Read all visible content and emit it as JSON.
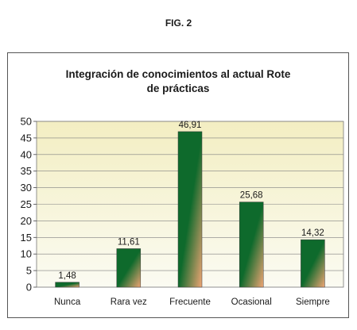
{
  "figure_label": "FIG. 2",
  "chart_data": {
    "type": "bar",
    "title": "Integración de conocimientos al actual Rote de prácticas",
    "title_lines": [
      "Integración de conocimientos al actual Rote",
      "de prácticas"
    ],
    "categories": [
      "Nunca",
      "Rara vez",
      "Frecuente",
      "Ocasional",
      "Siempre"
    ],
    "values": [
      1.48,
      11.61,
      46.91,
      25.68,
      14.32
    ],
    "value_labels": [
      "1,48",
      "11,61",
      "46,91",
      "25,68",
      "14,32"
    ],
    "y_ticks": [
      "0",
      "5",
      "10",
      "15",
      "20",
      "25",
      "30",
      "35",
      "40",
      "45",
      "50"
    ],
    "ylim": [
      0,
      50
    ],
    "grid": true,
    "xlabel": "",
    "ylabel": "",
    "colors": {
      "bar_dark": "#0e6a2c",
      "bar_light": "#f0a574",
      "plot_top": "#f3eec2",
      "plot_bottom": "#fbfbf2",
      "grid": "#808080"
    }
  }
}
